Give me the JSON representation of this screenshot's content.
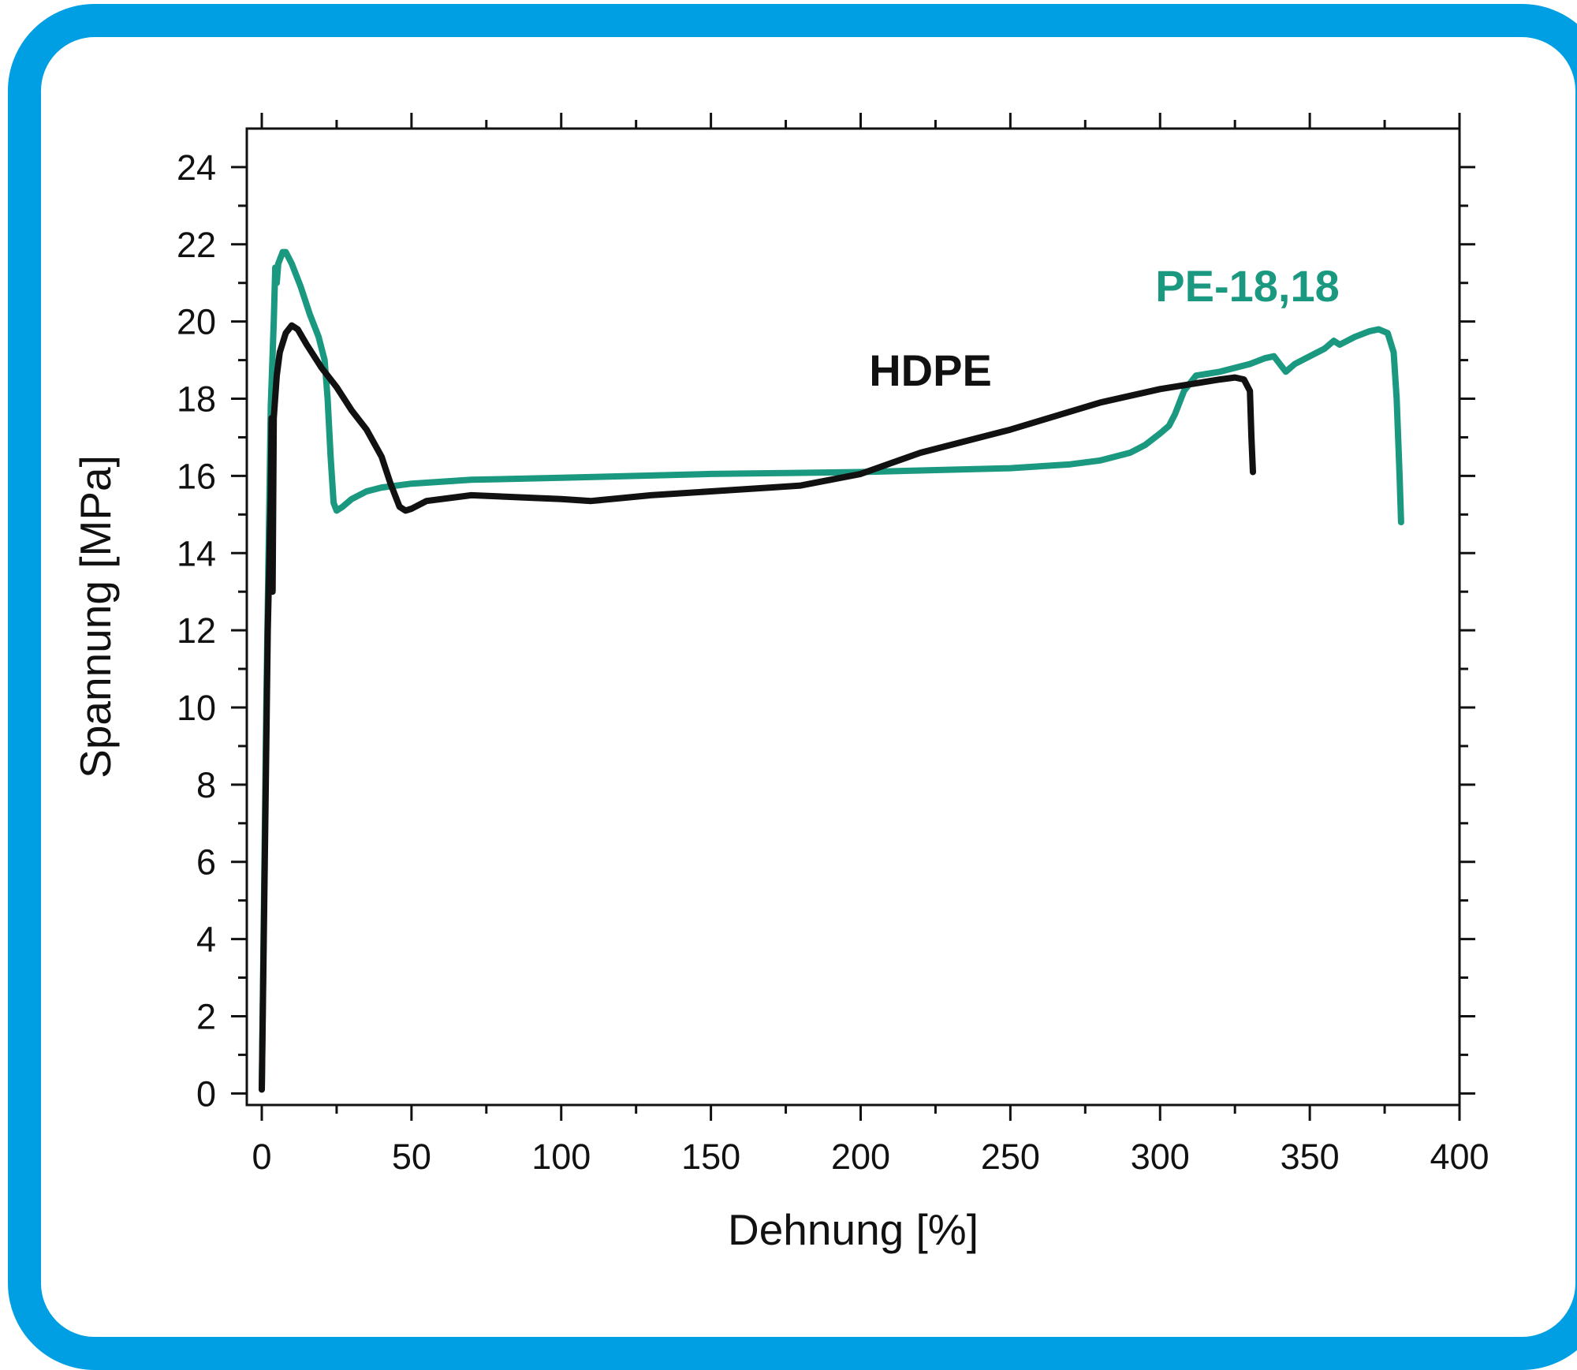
{
  "chart_data": {
    "type": "line",
    "title": "",
    "xlabel": "Dehnung [%]",
    "ylabel": "Spannung [MPa]",
    "xlim": [
      -5,
      400
    ],
    "ylim": [
      -0.3,
      25
    ],
    "xticks": [
      0,
      50,
      100,
      150,
      200,
      250,
      300,
      350,
      400
    ],
    "xtick_labels": [
      "0",
      "50",
      "100",
      "150",
      "200",
      "250",
      "300",
      "350",
      "400"
    ],
    "yticks": [
      0,
      2,
      4,
      6,
      8,
      10,
      12,
      14,
      16,
      18,
      20,
      22,
      24
    ],
    "ytick_labels": [
      "0",
      "2",
      "4",
      "6",
      "8",
      "10",
      "12",
      "14",
      "16",
      "18",
      "20",
      "22",
      "24"
    ],
    "grid": false,
    "legend": "none",
    "series": [
      {
        "name": "PE-18,18",
        "color": "#1a9980",
        "points": [
          [
            0,
            0.1
          ],
          [
            1.5,
            10
          ],
          [
            3,
            17.8
          ],
          [
            4,
            20
          ],
          [
            4.5,
            21.4
          ],
          [
            5,
            21
          ],
          [
            5.5,
            21.5
          ],
          [
            7,
            21.8
          ],
          [
            8,
            21.8
          ],
          [
            10,
            21.5
          ],
          [
            13,
            20.9
          ],
          [
            16,
            20.2
          ],
          [
            19,
            19.6
          ],
          [
            21,
            19
          ],
          [
            22,
            18
          ],
          [
            23,
            16.5
          ],
          [
            24,
            15.3
          ],
          [
            25,
            15.1
          ],
          [
            27,
            15.2
          ],
          [
            30,
            15.4
          ],
          [
            35,
            15.6
          ],
          [
            40,
            15.7
          ],
          [
            50,
            15.8
          ],
          [
            70,
            15.9
          ],
          [
            100,
            15.95
          ],
          [
            150,
            16.05
          ],
          [
            200,
            16.1
          ],
          [
            250,
            16.2
          ],
          [
            270,
            16.3
          ],
          [
            280,
            16.4
          ],
          [
            290,
            16.6
          ],
          [
            295,
            16.8
          ],
          [
            300,
            17.1
          ],
          [
            303,
            17.3
          ],
          [
            305,
            17.6
          ],
          [
            308,
            18.2
          ],
          [
            312,
            18.6
          ],
          [
            320,
            18.7
          ],
          [
            330,
            18.9
          ],
          [
            335,
            19.05
          ],
          [
            338,
            19.1
          ],
          [
            340,
            18.9
          ],
          [
            342,
            18.7
          ],
          [
            345,
            18.9
          ],
          [
            350,
            19.1
          ],
          [
            355,
            19.3
          ],
          [
            358,
            19.5
          ],
          [
            360,
            19.4
          ],
          [
            365,
            19.6
          ],
          [
            370,
            19.75
          ],
          [
            373,
            19.8
          ],
          [
            376,
            19.7
          ],
          [
            378,
            19.2
          ],
          [
            379,
            18
          ],
          [
            380,
            16
          ],
          [
            380.5,
            14.8
          ]
        ]
      },
      {
        "name": "HDPE",
        "color": "#111111",
        "points": [
          [
            0,
            0.1
          ],
          [
            1,
            6
          ],
          [
            2,
            12
          ],
          [
            3,
            15.5
          ],
          [
            3.3,
            17.5
          ],
          [
            3.6,
            13
          ],
          [
            4,
            17.5
          ],
          [
            5,
            18.6
          ],
          [
            6,
            19.2
          ],
          [
            8,
            19.7
          ],
          [
            10,
            19.9
          ],
          [
            12,
            19.8
          ],
          [
            15,
            19.4
          ],
          [
            20,
            18.8
          ],
          [
            25,
            18.3
          ],
          [
            30,
            17.7
          ],
          [
            35,
            17.2
          ],
          [
            40,
            16.5
          ],
          [
            43,
            15.8
          ],
          [
            46,
            15.2
          ],
          [
            48,
            15.1
          ],
          [
            50,
            15.15
          ],
          [
            55,
            15.35
          ],
          [
            70,
            15.5
          ],
          [
            100,
            15.4
          ],
          [
            110,
            15.35
          ],
          [
            130,
            15.5
          ],
          [
            150,
            15.6
          ],
          [
            170,
            15.7
          ],
          [
            180,
            15.75
          ],
          [
            200,
            16.05
          ],
          [
            220,
            16.6
          ],
          [
            250,
            17.2
          ],
          [
            280,
            17.9
          ],
          [
            300,
            18.25
          ],
          [
            320,
            18.5
          ],
          [
            325,
            18.55
          ],
          [
            328,
            18.5
          ],
          [
            330,
            18.2
          ],
          [
            330.5,
            17
          ],
          [
            331,
            16.1
          ]
        ]
      }
    ],
    "annotations": [
      {
        "text": "PE-18,18",
        "color": "#1a9980"
      },
      {
        "text": "HDPE",
        "color": "#111111"
      }
    ]
  }
}
